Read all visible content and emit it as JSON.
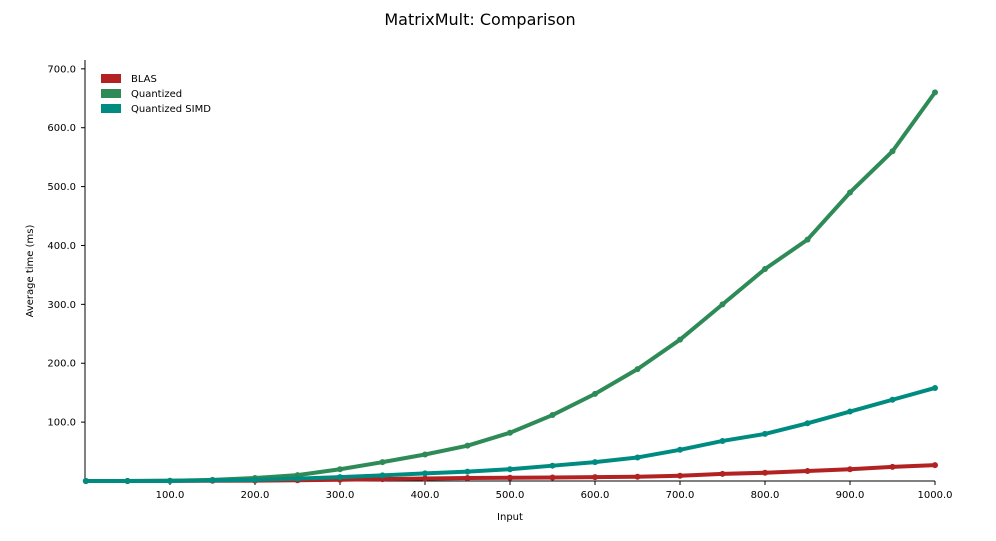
{
  "chart_data": {
    "type": "line",
    "title": "MatrixMult: Comparison",
    "xlabel": "Input",
    "ylabel": "Average time (ms)",
    "xlim": [
      0,
      1000
    ],
    "ylim": [
      0,
      715
    ],
    "x_ticks": [
      100,
      200,
      300,
      400,
      500,
      600,
      700,
      800,
      900,
      1000
    ],
    "x_tick_labels": [
      "100.0",
      "200.0",
      "300.0",
      "400.0",
      "500.0",
      "600.0",
      "700.0",
      "800.0",
      "900.0",
      "1000.0"
    ],
    "y_ticks": [
      100,
      200,
      300,
      400,
      500,
      600,
      700
    ],
    "y_tick_labels": [
      "100.0",
      "200.0",
      "300.0",
      "400.0",
      "500.0",
      "600.0",
      "700.0"
    ],
    "grid": false,
    "legend_position": "top-left",
    "series": [
      {
        "name": "BLAS",
        "color": "#b22222",
        "x": [
          1,
          50,
          100,
          150,
          200,
          250,
          300,
          350,
          400,
          450,
          500,
          550,
          600,
          650,
          700,
          750,
          800,
          850,
          900,
          950,
          1000
        ],
        "y": [
          0,
          0,
          0.2,
          0.4,
          0.7,
          1.3,
          2.1,
          3.2,
          4.2,
          5.1,
          5.6,
          6.0,
          6.5,
          7.3,
          9.0,
          12.0,
          14.0,
          17.0,
          20.0,
          24.0,
          27.0
        ]
      },
      {
        "name": "Quantized",
        "color": "#2e8b57",
        "x": [
          1,
          50,
          100,
          150,
          200,
          250,
          300,
          350,
          400,
          450,
          500,
          550,
          600,
          650,
          700,
          750,
          800,
          850,
          900,
          950,
          1000
        ],
        "y": [
          0,
          0,
          0.5,
          2,
          5,
          10,
          20,
          32,
          45,
          60,
          82,
          112,
          148,
          190,
          240,
          300,
          360,
          410,
          490,
          560,
          660
        ]
      },
      {
        "name": "Quantized SIMD",
        "color": "#008b80",
        "x": [
          1,
          50,
          100,
          150,
          200,
          250,
          300,
          350,
          400,
          450,
          500,
          550,
          600,
          650,
          700,
          750,
          800,
          850,
          900,
          950,
          1000
        ],
        "y": [
          0,
          0,
          0.3,
          1,
          2,
          4,
          6.5,
          9.5,
          13,
          16,
          20,
          26,
          32,
          40,
          53,
          68,
          80,
          98,
          118,
          138,
          158
        ]
      }
    ]
  }
}
